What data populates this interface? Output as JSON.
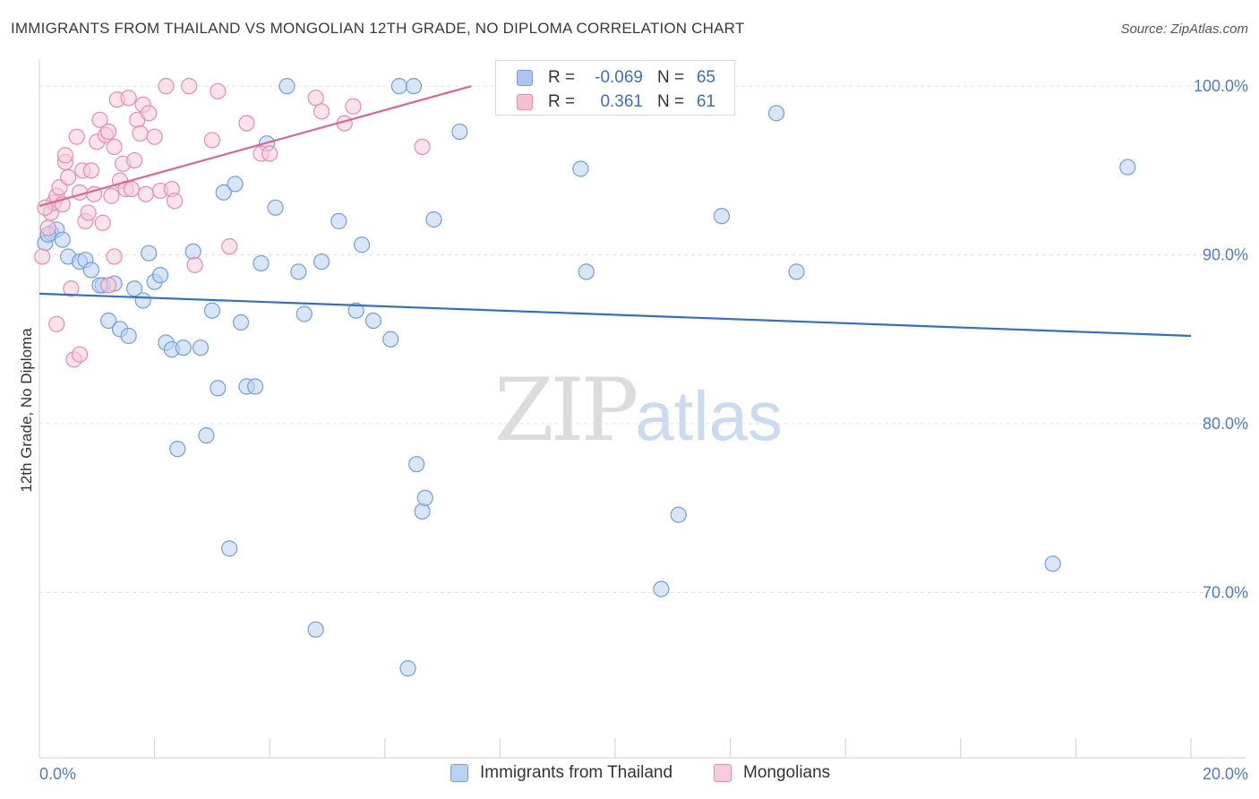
{
  "title": "IMMIGRANTS FROM THAILAND VS MONGOLIAN 12TH GRADE, NO DIPLOMA CORRELATION CHART",
  "source": "Source: ZipAtlas.com",
  "watermark": {
    "zip": "ZIP",
    "atlas": "atlas"
  },
  "legend_top": {
    "rows": [
      {
        "r_label": "R =",
        "r_value": "-0.069",
        "n_label": "N =",
        "n_value": "65",
        "color": "#a8c6ef",
        "border": "#6f9ee0"
      },
      {
        "r_label": "R =",
        "r_value": "0.361",
        "n_label": "N =",
        "n_value": "61",
        "color": "#f6bfd1",
        "border": "#e98aa9"
      }
    ]
  },
  "legend_bottom": [
    {
      "label": "Immigrants from Thailand",
      "color": "#b9d2f3",
      "border": "#6f9ee0"
    },
    {
      "label": "Mongolians",
      "color": "#f9cadb",
      "border": "#e98aa9"
    }
  ],
  "chart_data": {
    "type": "scatter",
    "title": "IMMIGRANTS FROM THAILAND VS MONGOLIAN 12TH GRADE, NO DIPLOMA CORRELATION CHART",
    "xlabel": "",
    "ylabel": "12th Grade, No Diploma",
    "xlim": [
      0,
      20
    ],
    "ylim": [
      60.2,
      101.6
    ],
    "x_tick_labels": [
      {
        "value": 0,
        "label": "0.0%"
      },
      {
        "value": 20,
        "label": "20.0%"
      }
    ],
    "y_tick_labels": [
      {
        "value": 100,
        "label": "100.0%"
      },
      {
        "value": 90,
        "label": "90.0%"
      },
      {
        "value": 80,
        "label": "80.0%"
      },
      {
        "value": 70,
        "label": "70.0%"
      }
    ],
    "x_minor_ticks": [
      2,
      4,
      6,
      8,
      10,
      12,
      14,
      16,
      18
    ],
    "grid": true,
    "series": [
      {
        "name": "Immigrants from Thailand",
        "color": "#6f9ee0",
        "fill": "#b9d2f3",
        "trend": {
          "x": [
            0,
            20
          ],
          "y": [
            87.7,
            85.2
          ],
          "color": "#2f6fcf"
        },
        "points": [
          [
            0.1,
            90.7
          ],
          [
            0.2,
            91.3
          ],
          [
            0.3,
            91.5
          ],
          [
            0.4,
            90.9
          ],
          [
            0.5,
            89.9
          ],
          [
            0.7,
            89.6
          ],
          [
            0.8,
            89.7
          ],
          [
            0.9,
            89.1
          ],
          [
            1.1,
            88.2
          ],
          [
            1.2,
            86.1
          ],
          [
            1.3,
            88.3
          ],
          [
            1.4,
            85.6
          ],
          [
            1.55,
            85.2
          ],
          [
            1.65,
            88.0
          ],
          [
            1.8,
            87.3
          ],
          [
            1.9,
            90.1
          ],
          [
            2.0,
            88.4
          ],
          [
            2.1,
            88.8
          ],
          [
            2.2,
            84.8
          ],
          [
            2.3,
            84.4
          ],
          [
            2.5,
            84.5
          ],
          [
            2.67,
            90.2
          ],
          [
            2.8,
            84.5
          ],
          [
            2.9,
            79.3
          ],
          [
            3.0,
            86.7
          ],
          [
            3.1,
            82.1
          ],
          [
            3.2,
            93.7
          ],
          [
            3.3,
            72.6
          ],
          [
            3.4,
            94.2
          ],
          [
            3.5,
            86.0
          ],
          [
            3.6,
            82.2
          ],
          [
            3.75,
            82.2
          ],
          [
            3.85,
            89.5
          ],
          [
            3.95,
            96.6
          ],
          [
            4.1,
            92.8
          ],
          [
            4.3,
            100.0
          ],
          [
            4.5,
            89.0
          ],
          [
            4.6,
            86.5
          ],
          [
            4.8,
            67.8
          ],
          [
            4.9,
            89.6
          ],
          [
            5.2,
            92.0
          ],
          [
            5.5,
            86.7
          ],
          [
            5.6,
            90.6
          ],
          [
            5.8,
            86.1
          ],
          [
            6.1,
            85.0
          ],
          [
            6.25,
            100.0
          ],
          [
            6.4,
            65.5
          ],
          [
            6.5,
            100.0
          ],
          [
            6.55,
            77.6
          ],
          [
            6.65,
            74.8
          ],
          [
            6.7,
            75.6
          ],
          [
            6.85,
            92.1
          ],
          [
            7.3,
            97.3
          ],
          [
            2.4,
            78.5
          ],
          [
            9.4,
            95.1
          ],
          [
            9.5,
            89.0
          ],
          [
            10.8,
            70.2
          ],
          [
            11.1,
            74.6
          ],
          [
            11.85,
            92.3
          ],
          [
            12.8,
            98.4
          ],
          [
            13.15,
            89.0
          ],
          [
            17.6,
            71.7
          ],
          [
            18.9,
            95.2
          ],
          [
            0.15,
            91.2
          ],
          [
            1.05,
            88.2
          ]
        ]
      },
      {
        "name": "Mongolians",
        "color": "#e98aa9",
        "fill": "#f9cadb",
        "trend": {
          "x": [
            0,
            7.5
          ],
          "y": [
            92.9,
            100.0
          ],
          "color": "#e0648f"
        },
        "points": [
          [
            0.05,
            89.9
          ],
          [
            0.15,
            91.6
          ],
          [
            0.2,
            92.5
          ],
          [
            0.25,
            93.1
          ],
          [
            0.3,
            93.5
          ],
          [
            0.35,
            94.0
          ],
          [
            0.4,
            93.0
          ],
          [
            0.45,
            95.5
          ],
          [
            0.5,
            94.6
          ],
          [
            0.55,
            88.0
          ],
          [
            0.6,
            83.8
          ],
          [
            0.65,
            97.0
          ],
          [
            0.7,
            84.1
          ],
          [
            0.75,
            95.0
          ],
          [
            0.8,
            92.0
          ],
          [
            0.85,
            92.5
          ],
          [
            0.9,
            95.0
          ],
          [
            0.95,
            93.6
          ],
          [
            1.0,
            96.7
          ],
          [
            1.05,
            98.0
          ],
          [
            1.1,
            91.9
          ],
          [
            1.15,
            97.1
          ],
          [
            1.2,
            97.3
          ],
          [
            1.25,
            93.5
          ],
          [
            1.3,
            96.4
          ],
          [
            1.35,
            99.2
          ],
          [
            1.4,
            94.4
          ],
          [
            1.45,
            95.4
          ],
          [
            1.5,
            93.9
          ],
          [
            1.55,
            99.3
          ],
          [
            1.6,
            93.9
          ],
          [
            1.65,
            95.6
          ],
          [
            1.7,
            98.0
          ],
          [
            1.75,
            97.2
          ],
          [
            1.8,
            98.9
          ],
          [
            1.85,
            93.6
          ],
          [
            1.9,
            98.4
          ],
          [
            2.0,
            97.0
          ],
          [
            2.1,
            93.8
          ],
          [
            2.2,
            100.0
          ],
          [
            2.3,
            93.9
          ],
          [
            2.35,
            93.2
          ],
          [
            2.6,
            100.0
          ],
          [
            2.7,
            89.4
          ],
          [
            3.0,
            96.8
          ],
          [
            3.1,
            99.7
          ],
          [
            3.3,
            90.5
          ],
          [
            3.6,
            97.8
          ],
          [
            3.85,
            96.0
          ],
          [
            4.0,
            96.0
          ],
          [
            4.8,
            99.3
          ],
          [
            4.9,
            98.5
          ],
          [
            5.3,
            97.8
          ],
          [
            5.45,
            98.8
          ],
          [
            6.65,
            96.4
          ],
          [
            0.3,
            85.9
          ],
          [
            1.3,
            89.9
          ],
          [
            0.1,
            92.8
          ],
          [
            0.45,
            95.9
          ],
          [
            0.7,
            93.7
          ],
          [
            1.2,
            88.2
          ]
        ]
      }
    ]
  }
}
